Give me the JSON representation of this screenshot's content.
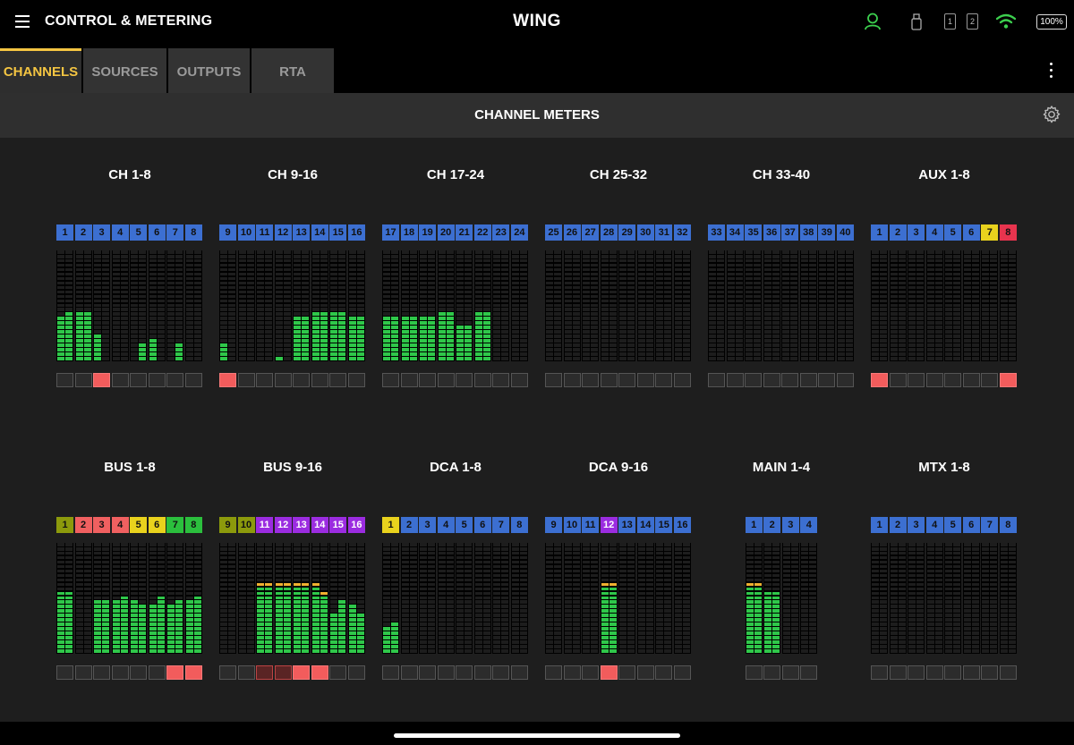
{
  "header": {
    "app_title": "CONTROL & METERING",
    "brand": "WING",
    "battery": "100%",
    "card1": "1",
    "card2": "2",
    "colors": {
      "user": "#3ccf4e",
      "wifi": "#3ccf4e"
    }
  },
  "tabs": [
    {
      "label": "CHANNELS",
      "active": true
    },
    {
      "label": "SOURCES",
      "active": false
    },
    {
      "label": "OUTPUTS",
      "active": false
    },
    {
      "label": "RTA",
      "active": false
    }
  ],
  "section": {
    "title": "CHANNEL METERS"
  },
  "colors": {
    "blue": "#3c6fd1",
    "yellow": "#e9d21d",
    "red": "#e8344e",
    "salmon": "#f06060",
    "orange": "#f2a53b",
    "olive": "#8c9a0c",
    "green": "#2bbf3d",
    "purple": "#9b2ce0",
    "meter_green": "#2fc84a",
    "meter_amber": "#f0b030",
    "meter_off": "#1d1d1d"
  },
  "groups": [
    {
      "title": "CH 1-8",
      "labels": [
        "1",
        "2",
        "3",
        "4",
        "5",
        "6",
        "7",
        "8"
      ],
      "label_colors": [
        "blue",
        "blue",
        "blue",
        "blue",
        "blue",
        "blue",
        "blue",
        "blue"
      ],
      "meters": [
        [
          0.4,
          0.43
        ],
        [
          0.45,
          0.45
        ],
        [
          0.24,
          0
        ],
        [
          0,
          0
        ],
        [
          0,
          0.16
        ],
        [
          0.2,
          0
        ],
        [
          0,
          0.16
        ],
        [
          0,
          0
        ]
      ],
      "peak": [
        false,
        false,
        false,
        false,
        false,
        false,
        false,
        false
      ],
      "buttons": [
        "off",
        "off",
        "on",
        "off",
        "off",
        "off",
        "off",
        "off"
      ]
    },
    {
      "title": "CH 9-16",
      "labels": [
        "9",
        "10",
        "11",
        "12",
        "13",
        "14",
        "15",
        "16"
      ],
      "label_colors": [
        "blue",
        "blue",
        "blue",
        "blue",
        "blue",
        "blue",
        "blue",
        "blue"
      ],
      "meters": [
        [
          0.16,
          0
        ],
        [
          0,
          0
        ],
        [
          0,
          0
        ],
        [
          0.04,
          0
        ],
        [
          0.4,
          0.4
        ],
        [
          0.45,
          0.45
        ],
        [
          0.45,
          0.45
        ],
        [
          0.41,
          0.41
        ]
      ],
      "peak": [
        false,
        false,
        false,
        false,
        false,
        false,
        false,
        false
      ],
      "buttons": [
        "on",
        "off",
        "off",
        "off",
        "off",
        "off",
        "off",
        "off"
      ]
    },
    {
      "title": "CH 17-24",
      "labels": [
        "17",
        "18",
        "19",
        "20",
        "21",
        "22",
        "23",
        "24"
      ],
      "label_colors": [
        "blue",
        "blue",
        "blue",
        "blue",
        "blue",
        "blue",
        "blue",
        "blue"
      ],
      "meters": [
        [
          0.4,
          0.41
        ],
        [
          0.4,
          0.4
        ],
        [
          0.41,
          0.41
        ],
        [
          0.45,
          0.45
        ],
        [
          0.32,
          0.32
        ],
        [
          0.45,
          0.45
        ],
        [
          0,
          0
        ],
        [
          0,
          0
        ]
      ],
      "peak": [
        false,
        false,
        false,
        false,
        false,
        false,
        false,
        false
      ],
      "buttons": [
        "off",
        "off",
        "off",
        "off",
        "off",
        "off",
        "off",
        "off"
      ]
    },
    {
      "title": "CH 25-32",
      "labels": [
        "25",
        "26",
        "27",
        "28",
        "29",
        "30",
        "31",
        "32"
      ],
      "label_colors": [
        "blue",
        "blue",
        "blue",
        "blue",
        "blue",
        "blue",
        "blue",
        "blue"
      ],
      "meters": [
        [
          0,
          0
        ],
        [
          0,
          0
        ],
        [
          0,
          0
        ],
        [
          0,
          0
        ],
        [
          0,
          0
        ],
        [
          0,
          0
        ],
        [
          0,
          0
        ],
        [
          0,
          0
        ]
      ],
      "peak": [
        false,
        false,
        false,
        false,
        false,
        false,
        false,
        false
      ],
      "buttons": [
        "off",
        "off",
        "off",
        "off",
        "off",
        "off",
        "off",
        "off"
      ]
    },
    {
      "title": "CH 33-40",
      "labels": [
        "33",
        "34",
        "35",
        "36",
        "37",
        "38",
        "39",
        "40"
      ],
      "label_colors": [
        "blue",
        "blue",
        "blue",
        "blue",
        "blue",
        "blue",
        "blue",
        "blue"
      ],
      "meters": [
        [
          0,
          0
        ],
        [
          0,
          0
        ],
        [
          0,
          0
        ],
        [
          0,
          0
        ],
        [
          0,
          0
        ],
        [
          0,
          0
        ],
        [
          0,
          0
        ],
        [
          0,
          0
        ]
      ],
      "peak": [
        false,
        false,
        false,
        false,
        false,
        false,
        false,
        false
      ],
      "buttons": [
        "off",
        "off",
        "off",
        "off",
        "off",
        "off",
        "off",
        "off"
      ]
    },
    {
      "title": "AUX 1-8",
      "labels": [
        "1",
        "2",
        "3",
        "4",
        "5",
        "6",
        "7",
        "8"
      ],
      "label_colors": [
        "blue",
        "blue",
        "blue",
        "blue",
        "blue",
        "blue",
        "yellow",
        "red"
      ],
      "meters": [
        [
          0,
          0
        ],
        [
          0,
          0
        ],
        [
          0,
          0
        ],
        [
          0,
          0
        ],
        [
          0,
          0
        ],
        [
          0,
          0
        ],
        [
          0,
          0
        ],
        [
          0,
          0
        ]
      ],
      "peak": [
        false,
        false,
        false,
        false,
        false,
        false,
        false,
        false
      ],
      "buttons": [
        "on",
        "off",
        "off",
        "off",
        "off",
        "off",
        "off",
        "on"
      ]
    },
    {
      "title": "BUS 1-8",
      "labels": [
        "1",
        "2",
        "3",
        "4",
        "5",
        "6",
        "7",
        "8"
      ],
      "label_colors": [
        "olive",
        "salmon",
        "salmon",
        "salmon",
        "yellow",
        "yellow",
        "green",
        "green"
      ],
      "meters": [
        [
          0.58,
          0.58
        ],
        [
          0,
          0
        ],
        [
          0.46,
          0.46
        ],
        [
          0.46,
          0.5
        ],
        [
          0.46,
          0.43
        ],
        [
          0.42,
          0.5
        ],
        [
          0.42,
          0.46
        ],
        [
          0.46,
          0.5
        ]
      ],
      "peak": [
        false,
        false,
        false,
        false,
        false,
        false,
        false,
        false
      ],
      "buttons": [
        "off",
        "off",
        "off",
        "off",
        "off",
        "off",
        "on",
        "on"
      ]
    },
    {
      "title": "BUS 9-16",
      "labels": [
        "9",
        "10",
        "11",
        "12",
        "13",
        "14",
        "15",
        "16"
      ],
      "label_colors": [
        "olive",
        "olive",
        "purple",
        "purple",
        "purple",
        "purple",
        "purple",
        "purple"
      ],
      "meters": [
        [
          0,
          0
        ],
        [
          0,
          0
        ],
        [
          0.62,
          0.62
        ],
        [
          0.62,
          0.62
        ],
        [
          0.62,
          0.62
        ],
        [
          0.62,
          0.58
        ],
        [
          0.37,
          0.46
        ],
        [
          0.42,
          0.37
        ]
      ],
      "peak": [
        false,
        false,
        true,
        true,
        true,
        true,
        false,
        false
      ],
      "buttons": [
        "off",
        "off",
        "dim",
        "dim",
        "on",
        "on",
        "off",
        "off"
      ]
    },
    {
      "title": "DCA 1-8",
      "labels": [
        "1",
        "2",
        "3",
        "4",
        "5",
        "6",
        "7",
        "8"
      ],
      "label_colors": [
        "yellow",
        "blue",
        "blue",
        "blue",
        "blue",
        "blue",
        "blue",
        "blue"
      ],
      "meters": [
        [
          0.25,
          0.29
        ],
        [
          0,
          0
        ],
        [
          0,
          0
        ],
        [
          0,
          0
        ],
        [
          0,
          0
        ],
        [
          0,
          0
        ],
        [
          0,
          0
        ],
        [
          0,
          0
        ]
      ],
      "peak": [
        false,
        false,
        false,
        false,
        false,
        false,
        false,
        false
      ],
      "buttons": [
        "off",
        "off",
        "off",
        "off",
        "off",
        "off",
        "off",
        "off"
      ]
    },
    {
      "title": "DCA 9-16",
      "labels": [
        "9",
        "10",
        "11",
        "12",
        "13",
        "14",
        "15",
        "16"
      ],
      "label_colors": [
        "blue",
        "blue",
        "blue",
        "purple",
        "blue",
        "blue",
        "blue",
        "blue"
      ],
      "meters": [
        [
          0,
          0
        ],
        [
          0,
          0
        ],
        [
          0,
          0
        ],
        [
          0.62,
          0.62
        ],
        [
          0,
          0
        ],
        [
          0,
          0
        ],
        [
          0,
          0
        ],
        [
          0,
          0
        ]
      ],
      "peak": [
        false,
        false,
        false,
        true,
        false,
        false,
        false,
        false
      ],
      "buttons": [
        "off",
        "off",
        "off",
        "on",
        "off",
        "off",
        "off",
        "off"
      ]
    },
    {
      "title": "MAIN 1-4",
      "labels": [
        "1",
        "2",
        "3",
        "4"
      ],
      "label_colors": [
        "blue",
        "blue",
        "blue",
        "blue"
      ],
      "meters": [
        [
          0.62,
          0.62
        ],
        [
          0.54,
          0.54
        ],
        [
          0,
          0
        ],
        [
          0,
          0
        ]
      ],
      "peak": [
        true,
        false,
        false,
        false
      ],
      "buttons": [
        "off",
        "off",
        "off",
        "off"
      ]
    },
    {
      "title": "MTX 1-8",
      "labels": [
        "1",
        "2",
        "3",
        "4",
        "5",
        "6",
        "7",
        "8"
      ],
      "label_colors": [
        "blue",
        "blue",
        "blue",
        "blue",
        "blue",
        "blue",
        "blue",
        "blue"
      ],
      "meters": [
        [
          0,
          0
        ],
        [
          0,
          0
        ],
        [
          0,
          0
        ],
        [
          0,
          0
        ],
        [
          0,
          0
        ],
        [
          0,
          0
        ],
        [
          0,
          0
        ],
        [
          0,
          0
        ]
      ],
      "peak": [
        false,
        false,
        false,
        false,
        false,
        false,
        false,
        false
      ],
      "buttons": [
        "off",
        "off",
        "off",
        "off",
        "off",
        "off",
        "off",
        "off"
      ]
    }
  ]
}
